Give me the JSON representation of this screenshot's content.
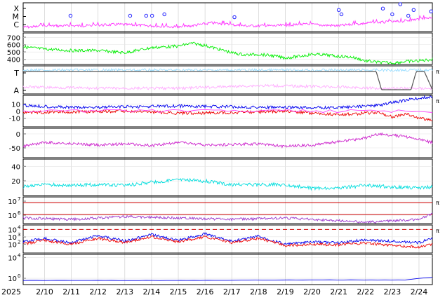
{
  "chart_data": {
    "type": "line",
    "x_axis": {
      "year_label": "2025",
      "ticks": [
        "2/10",
        "2/11",
        "2/12",
        "2/13",
        "2/14",
        "2/15",
        "2/16",
        "2/17",
        "2/18",
        "2/19",
        "2/20",
        "2/21",
        "2/22",
        "2/23",
        "2/24"
      ],
      "range_days": [
        9.2,
        24.5
      ],
      "grid": true
    },
    "panels": [
      {
        "id": "flare-class",
        "y_labels": [
          "X",
          "M",
          "C"
        ],
        "right_tag": "",
        "color": "#ff33ff",
        "series": [
          {
            "color": "#ff33ff",
            "values": [
              0.15,
              0.2,
              0.2,
              0.25,
              0.2,
              0.15,
              0.3,
              0.2,
              0.2,
              0.25,
              0.2,
              0.3,
              0.35,
              0.5
            ]
          }
        ],
        "markers": {
          "color": "#3333ff",
          "x": [
            10.97,
            13.2,
            13.8,
            14.02,
            14.48,
            17.1,
            21.0,
            21.1,
            22.65,
            23.0,
            23.3,
            23.6,
            23.8,
            24.45
          ],
          "level": [
            0.55,
            0.55,
            0.55,
            0.55,
            0.6,
            0.5,
            0.75,
            0.6,
            0.8,
            0.6,
            0.95,
            0.55,
            0.75,
            0.7
          ]
        }
      },
      {
        "id": "solar-wind-speed",
        "y_ticks": [
          400,
          500,
          600,
          700
        ],
        "ylim": [
          330,
          760
        ],
        "right_tag": "",
        "series": [
          {
            "color": "#00ee00",
            "x": [
              9.2,
              10,
              11,
              12,
              13,
              14,
              15,
              15.5,
              16,
              17,
              17.5,
              18,
              18.5,
              19,
              19.5,
              20,
              20.5,
              21,
              21.5,
              22,
              22.5,
              23,
              23.5,
              24,
              24.5
            ],
            "y": [
              570,
              540,
              520,
              520,
              490,
              560,
              580,
              620,
              590,
              490,
              460,
              470,
              450,
              420,
              440,
              470,
              460,
              440,
              430,
              380,
              360,
              350,
              370,
              380,
              400
            ]
          }
        ]
      },
      {
        "id": "magnetic-orientation",
        "y_labels": [
          "T",
          "A"
        ],
        "right_tag": "π",
        "series": [
          {
            "color": "#99ddff",
            "x": [
              9.2,
              12,
              15,
              18,
              21,
              22.4,
              24.5
            ],
            "y": [
              0.85,
              0.85,
              0.85,
              0.85,
              0.85,
              0.85,
              0.85
            ]
          },
          {
            "color": "#ffaaff",
            "x": [
              9.2,
              12,
              15,
              18,
              21,
              22.4,
              24.5
            ],
            "y": [
              0.25,
              0.2,
              0.2,
              0.3,
              0.25,
              0.2,
              0.2
            ]
          },
          {
            "color": "#555555",
            "x": [
              22.4,
              22.6,
              23.7,
              23.9,
              24.2,
              24.5
            ],
            "y": [
              0.8,
              0.15,
              0.15,
              0.8,
              0.8,
              0.15
            ]
          }
        ]
      },
      {
        "id": "imf-components",
        "y_ticks": [
          -10,
          0,
          10
        ],
        "ylim": [
          -22,
          22
        ],
        "right_tag": "π",
        "series": [
          {
            "color": "#0000ee",
            "x": [
              9.2,
              11,
              13,
              15,
              17,
              19,
              21,
              22.5,
              23,
              23.5,
              24,
              24.5
            ],
            "y": [
              8,
              5,
              6,
              7,
              6,
              5,
              5,
              8,
              12,
              15,
              18,
              20
            ]
          },
          {
            "color": "#ee0000",
            "x": [
              9.2,
              11,
              13,
              15,
              17,
              19,
              21,
              22.5,
              23,
              23.5,
              24,
              24.5
            ],
            "y": [
              -2,
              -1,
              0,
              -3,
              -2,
              0,
              -5,
              -2,
              -8,
              -4,
              -10,
              -12
            ]
          },
          {
            "color": "#ff44ff",
            "x": [
              9.2,
              24.5
            ],
            "y": [
              0,
              0
            ]
          }
        ]
      },
      {
        "id": "kp-like",
        "y_ticks": [
          -50,
          0
        ],
        "ylim": [
          -85,
          20
        ],
        "right_tag": "",
        "series": [
          {
            "color": "#cc22cc",
            "x": [
              9.2,
              10,
              11,
              12,
              13,
              14,
              15,
              16,
              17,
              18,
              19,
              20,
              21,
              22,
              22.5,
              23,
              23.5,
              24,
              24.5
            ],
            "y": [
              -45,
              -30,
              -35,
              -40,
              -35,
              -42,
              -30,
              -40,
              -38,
              -35,
              -45,
              -40,
              -28,
              -15,
              0,
              -5,
              -10,
              -20,
              -30
            ]
          }
        ]
      },
      {
        "id": "proton-density",
        "y_ticks": [
          20,
          40
        ],
        "ylim": [
          0,
          50
        ],
        "right_tag": "",
        "series": [
          {
            "color": "#00dddd",
            "x": [
              9.2,
              10,
              11,
              12,
              13,
              14,
              15,
              16,
              17,
              18,
              19,
              20,
              21,
              22,
              23,
              24,
              24.5
            ],
            "y": [
              12,
              15,
              14,
              15,
              14,
              18,
              22,
              20,
              15,
              15,
              15,
              10,
              10,
              14,
              12,
              10,
              12
            ]
          }
        ]
      },
      {
        "id": "temperature",
        "y_ticks": [
          "10^6",
          "10^7"
        ],
        "log_range": [
          5.4,
          7.3
        ],
        "right_tag": "π",
        "series": [
          {
            "color": "#9933cc",
            "x": [
              9.2,
              11,
              13,
              15,
              17,
              19,
              21,
              22,
              23,
              24,
              24.5
            ],
            "y": [
              5.8,
              5.7,
              5.9,
              5.8,
              5.7,
              5.8,
              5.6,
              5.5,
              5.6,
              5.7,
              6.1
            ]
          }
        ],
        "reference_lines": {
          "color": "#cc0000",
          "y": [
            6.9,
            6.05
          ]
        }
      },
      {
        "id": "electron-proton-flux",
        "y_ticks": [
          "10^2",
          "10^3",
          "10^4"
        ],
        "log_range": [
          0.8,
          4.6
        ],
        "right_tag": "π",
        "series": [
          {
            "color": "#0000ee",
            "x": [
              9.2,
              10,
              11,
              12,
              13,
              14,
              15,
              16,
              17,
              18,
              19,
              20,
              21,
              22,
              23,
              24,
              24.5
            ],
            "y": [
              2.3,
              2.8,
              2.2,
              3.2,
              2.4,
              3.3,
              2.5,
              3.4,
              2.4,
              3.1,
              2.0,
              2.3,
              2.2,
              2.6,
              2.4,
              2.2,
              2.8
            ]
          },
          {
            "color": "#ee0000",
            "x": [
              9.2,
              10,
              11,
              12,
              13,
              14,
              15,
              16,
              17,
              18,
              19,
              20,
              21,
              22,
              23,
              24,
              24.5
            ],
            "y": [
              2.0,
              2.5,
              2.0,
              2.8,
              2.2,
              3.0,
              2.3,
              3.0,
              2.2,
              2.8,
              1.8,
              2.0,
              1.9,
              2.2,
              1.8,
              1.6,
              2.0
            ]
          }
        ],
        "reference_lines": {
          "color": "#cc0000",
          "y": [
            4.0
          ]
        }
      },
      {
        "id": "particle-count",
        "y_ticks": [
          "10^0",
          "10^4"
        ],
        "log_range": [
          -1.2,
          4.6
        ],
        "right_tag": "",
        "series": [
          {
            "color": "#0000ee",
            "x": [
              9.2,
              15,
              20,
              22,
              23.5,
              24.2,
              24.5
            ],
            "y": [
              -0.4,
              -0.4,
              -0.3,
              -0.3,
              -0.3,
              0.1,
              0.2
            ]
          }
        ]
      }
    ]
  }
}
